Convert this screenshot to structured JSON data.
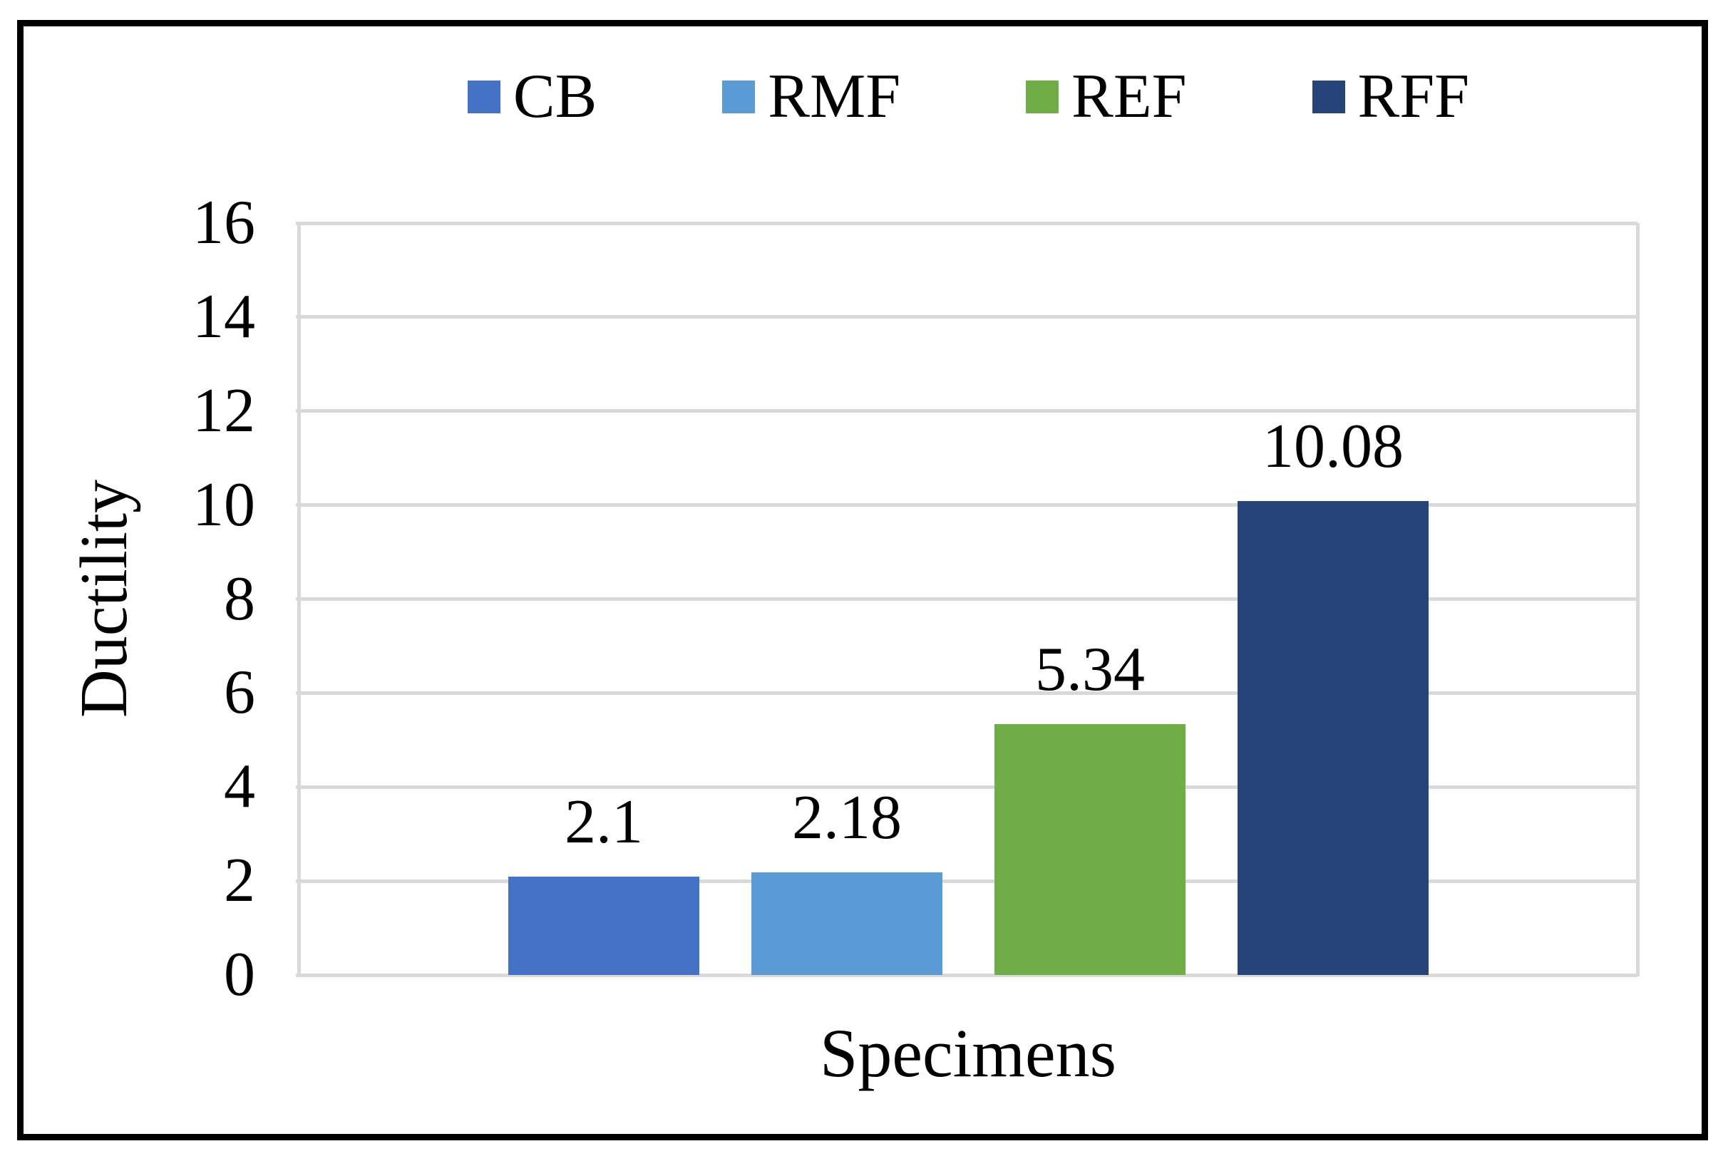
{
  "chart_data": {
    "type": "bar",
    "categories": [
      "Specimens"
    ],
    "series": [
      {
        "name": "CB",
        "value": 2.1,
        "label": "2.1",
        "color": "#4472C4"
      },
      {
        "name": "RMF",
        "value": 2.18,
        "label": "2.18",
        "color": "#5B9BD5"
      },
      {
        "name": "REF",
        "value": 5.34,
        "label": "5.34",
        "color": "#70AD47"
      },
      {
        "name": "RFF",
        "value": 10.08,
        "label": "10.08",
        "color": "#264478"
      }
    ],
    "title": "",
    "xlabel": "Specimens",
    "ylabel": "Ductility",
    "ylim": [
      0,
      16
    ],
    "ytick_step": 2,
    "yticks": [
      0,
      2,
      4,
      6,
      8,
      10,
      12,
      14,
      16
    ],
    "grid": "horizontal",
    "gridline_color": "#D9D9D9",
    "axis_line_color": "#D9D9D9",
    "frame_color": "#000000",
    "legend_position": "top",
    "data_labels_position": "outside-end"
  }
}
